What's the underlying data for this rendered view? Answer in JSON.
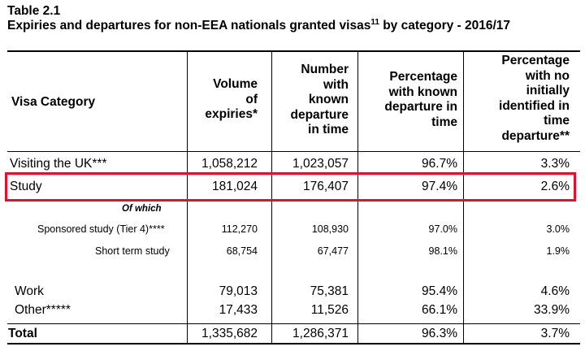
{
  "title": "Table 2.1",
  "subtitle": "Expiries and departures for non-EEA nationals granted visas",
  "subtitle_sup": "11",
  "subtitle_tail": " by category - 2016/17",
  "headers": {
    "category": "Visa Category",
    "col1": [
      "Volume",
      "of",
      "expiries*"
    ],
    "col2": [
      "Number",
      "with",
      "known",
      "departure",
      "in time"
    ],
    "col3": [
      "Percentage",
      "with known",
      "departure in",
      "time"
    ],
    "col4": [
      "Percentage",
      "with no",
      "initially",
      "identified in",
      "time",
      "departure**"
    ]
  },
  "rows": {
    "visiting": {
      "label": "Visiting the UK***",
      "v1": "1,058,212",
      "v2": "1,023,057",
      "v3": "96.7%",
      "v4": "3.3%"
    },
    "study": {
      "label": "Study",
      "v1": "181,024",
      "v2": "176,407",
      "v3": "97.4%",
      "v4": "2.6%"
    },
    "of_which": "Of which",
    "sponsored": {
      "label": "Sponsored study (Tier 4)****",
      "v1": "112,270",
      "v2": "108,930",
      "v3": "97.0%",
      "v4": "3.0%"
    },
    "shortterm": {
      "label": "Short term study",
      "v1": "68,754",
      "v2": "67,477",
      "v3": "98.1%",
      "v4": "1.9%"
    },
    "work": {
      "label": "Work",
      "v1": "79,013",
      "v2": "75,381",
      "v3": "95.4%",
      "v4": "4.6%"
    },
    "other": {
      "label": "Other*****",
      "v1": "17,433",
      "v2": "11,526",
      "v3": "66.1%",
      "v4": "33.9%"
    },
    "total": {
      "label": "Total",
      "v1": "1,335,682",
      "v2": "1,286,371",
      "v3": "96.3%",
      "v4": "3.7%"
    }
  },
  "colors": {
    "highlight": "#e0102e"
  }
}
